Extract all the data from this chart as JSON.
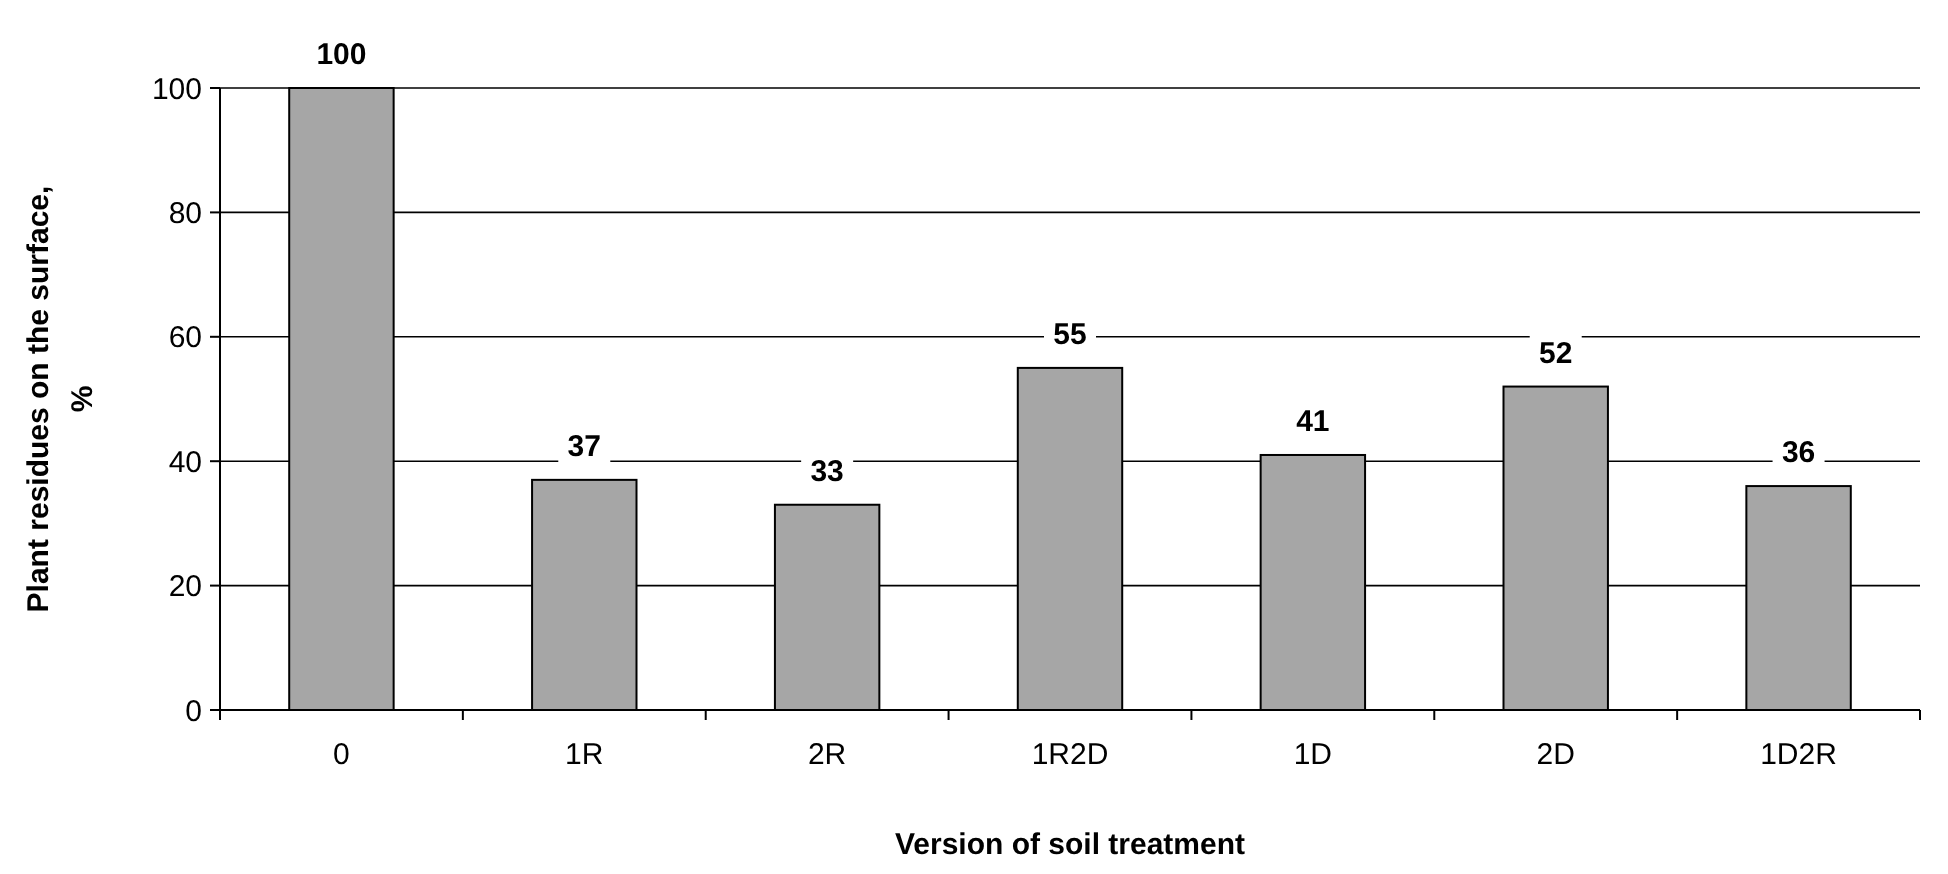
{
  "chart_data": {
    "type": "bar",
    "xlabel": "Version of soil treatment",
    "ylabel": "Plant residues on the surface, %",
    "categories": [
      "0",
      "1R",
      "2R",
      "1R2D",
      "1D",
      "2D",
      "1D2R"
    ],
    "values": [
      100,
      37,
      33,
      55,
      41,
      52,
      36
    ],
    "color": "#a6a6a6",
    "ylim": [
      0,
      100
    ],
    "yticks": [
      0,
      20,
      40,
      60,
      80,
      100
    ],
    "grid": "y",
    "data_labels": true
  }
}
